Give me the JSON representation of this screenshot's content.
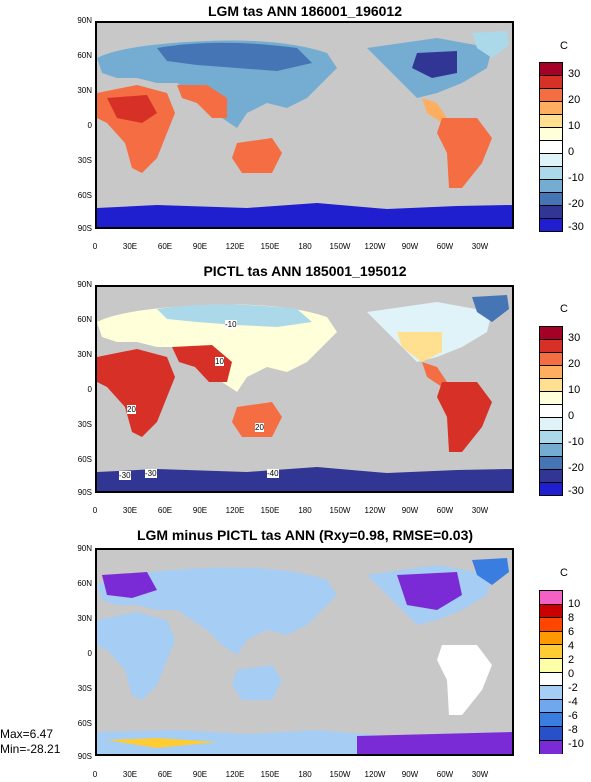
{
  "chart_data": [
    {
      "type": "heatmap",
      "title": "LGM tas ANN 186001_196012",
      "unit": "C",
      "lat_ticks": [
        "90N",
        "60N",
        "30N",
        "0",
        "30S",
        "60S",
        "90S"
      ],
      "lon_ticks": [
        "0",
        "30E",
        "60E",
        "90E",
        "120E",
        "150E",
        "180",
        "150W",
        "120W",
        "90W",
        "60W",
        "30W"
      ],
      "colorbar_ticks": [
        "30",
        "20",
        "10",
        "0",
        "-10",
        "-20",
        "-30"
      ],
      "colorbar_colors": [
        "#a50026",
        "#d73027",
        "#f46d43",
        "#fdae61",
        "#fee090",
        "#ffffd9",
        "#ffffff",
        "#e0f3f8",
        "#abd9e9",
        "#74add1",
        "#4575b4",
        "#313695",
        "#1f1fcf"
      ],
      "regions": [
        {
          "name": "Eurasia",
          "value": -8
        },
        {
          "name": "Siberia",
          "value": -18
        },
        {
          "name": "North America",
          "value": -22
        },
        {
          "name": "Africa",
          "value": 24
        },
        {
          "name": "South America",
          "value": 22
        },
        {
          "name": "Australia",
          "value": 20
        },
        {
          "name": "Antarctica",
          "value": -40
        }
      ]
    },
    {
      "type": "heatmap",
      "title": "PICTL tas ANN 185001_195012",
      "unit": "C",
      "lat_ticks": [
        "90N",
        "60N",
        "30N",
        "0",
        "30S",
        "60S",
        "90S"
      ],
      "lon_ticks": [
        "0",
        "30E",
        "60E",
        "90E",
        "120E",
        "150E",
        "180",
        "150W",
        "120W",
        "90W",
        "60W",
        "30W"
      ],
      "colorbar_ticks": [
        "30",
        "20",
        "10",
        "0",
        "-10",
        "-20",
        "-30"
      ],
      "contour_labels": [
        "-10",
        "10",
        "20",
        "20",
        "-30",
        "-30",
        "-40"
      ],
      "regions": [
        {
          "name": "Eurasia",
          "value": 5
        },
        {
          "name": "Siberia",
          "value": -10
        },
        {
          "name": "North America",
          "value": 2
        },
        {
          "name": "Africa",
          "value": 26
        },
        {
          "name": "South America",
          "value": 24
        },
        {
          "name": "Australia",
          "value": 22
        },
        {
          "name": "Antarctica",
          "value": -38
        }
      ]
    },
    {
      "type": "heatmap",
      "title": "LGM minus PICTL tas ANN (Rxy=0.98, RMSE=0.03)",
      "unit": "C",
      "lat_ticks": [
        "90N",
        "60N",
        "30N",
        "0",
        "30S",
        "60S",
        "90S"
      ],
      "lon_ticks": [
        "0",
        "30E",
        "60E",
        "90E",
        "120E",
        "150E",
        "180",
        "150W",
        "120W",
        "90W",
        "60W",
        "30W"
      ],
      "colorbar_ticks": [
        "10",
        "8",
        "6",
        "4",
        "2",
        "0",
        "-2",
        "-4",
        "-6",
        "-8",
        "-10"
      ],
      "colorbar_colors": [
        "#f461c4",
        "#cc0000",
        "#ff4500",
        "#ff9900",
        "#ffcc33",
        "#ffffaa",
        "#ffffff",
        "#a6cdf4",
        "#6fa8ec",
        "#3a7de0",
        "#2850c8",
        "#7b2bd6"
      ],
      "max_label": "Max=6.47",
      "min_label": "Min=-28.21",
      "regions": [
        {
          "name": "Eurasia",
          "value": -2
        },
        {
          "name": "North America",
          "value": -10
        },
        {
          "name": "Africa",
          "value": -1
        },
        {
          "name": "South America",
          "value": -1
        },
        {
          "name": "Australia",
          "value": -1
        },
        {
          "name": "Antarctica",
          "value": -6
        }
      ]
    }
  ]
}
